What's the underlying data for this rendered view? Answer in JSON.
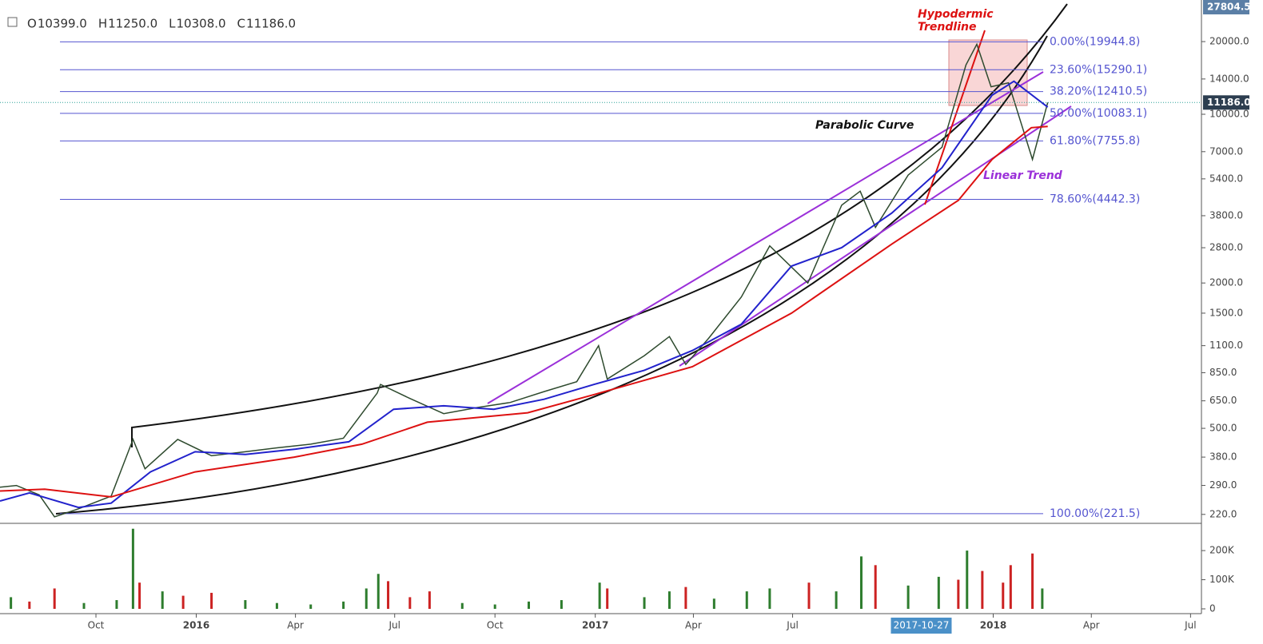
{
  "ohlc": [
    {
      "key": "O",
      "value": 10399,
      "label": "10399.0"
    },
    {
      "key": "H",
      "value": 11250,
      "label": "11250.0"
    },
    {
      "key": "L",
      "value": 10308,
      "label": "10308.0"
    },
    {
      "key": "C",
      "value": 11186,
      "label": "11186.0"
    }
  ],
  "chart_data": [
    {
      "type": "line",
      "log_scale": true,
      "xlim": [
        "2015-07-05",
        "2018-07-11"
      ],
      "ylim": [
        202,
        29740
      ],
      "yticks": [
        {
          "value": 20000,
          "label": "20000.0"
        },
        {
          "value": 14000,
          "label": "14000.0"
        },
        {
          "value": 10000,
          "label": "10000.0"
        },
        {
          "value": 7000,
          "label": "7000.0"
        },
        {
          "value": 5400,
          "label": "5400.0"
        },
        {
          "value": 3800,
          "label": "3800.0"
        },
        {
          "value": 2800,
          "label": "2800.0"
        },
        {
          "value": 2000,
          "label": "2000.0"
        },
        {
          "value": 1500,
          "label": "1500.0"
        },
        {
          "value": 1100,
          "label": "1100.0"
        },
        {
          "value": 850,
          "label": "850.0"
        },
        {
          "value": 650,
          "label": "650.0"
        },
        {
          "value": 500,
          "label": "500.0"
        },
        {
          "value": 380,
          "label": "380.0"
        },
        {
          "value": 290,
          "label": "290.0"
        },
        {
          "value": 220,
          "label": "220.0"
        }
      ],
      "xticks": [
        {
          "value": "2015-10-01",
          "label": "Oct"
        },
        {
          "value": "2016-01-01",
          "label": "2016"
        },
        {
          "value": "2016-04-01",
          "label": "Apr"
        },
        {
          "value": "2016-07-01",
          "label": "Jul"
        },
        {
          "value": "2016-10-01",
          "label": "Oct"
        },
        {
          "value": "2017-01-01",
          "label": "2017"
        },
        {
          "value": "2017-04-01",
          "label": "Apr"
        },
        {
          "value": "2017-07-01",
          "label": "Jul"
        },
        {
          "value": "2018-01-01",
          "label": "2018"
        },
        {
          "value": "2018-04-01",
          "label": "Apr"
        },
        {
          "value": "2018-07-01",
          "label": "Jul"
        }
      ],
      "crosshair_date": "2017-10-27",
      "axis_high": {
        "value": 27804.5,
        "label": "27804.5"
      },
      "last_price": {
        "value": 11186,
        "label": "11186.0"
      },
      "fib_levels": [
        {
          "value": 19944.8,
          "label": "0.00%(19944.8)"
        },
        {
          "value": 15290.1,
          "label": "23.60%(15290.1)"
        },
        {
          "value": 12410.5,
          "label": "38.20%(12410.5)"
        },
        {
          "value": 10083.1,
          "label": "50.00%(10083.1)"
        },
        {
          "value": 7755.8,
          "label": "61.80%(7755.8)"
        },
        {
          "value": 4442.3,
          "label": "78.60%(4442.3)"
        },
        {
          "value": 221.5,
          "label": "100.00%(221.5)"
        }
      ],
      "fib_color": "#5555d0",
      "annotations": {
        "hypodermic": "Hypodermic",
        "trendline": "Trendline",
        "parabolic": "Parabolic Curve",
        "linear": "Linear Trend"
      },
      "series": [
        {
          "color": "#2e4a2e",
          "x": [
            "2015-07-05",
            "2015-07-20",
            "2015-08-10",
            "2015-08-24",
            "2015-09-15",
            "2015-10-15",
            "2015-11-04",
            "2015-11-15",
            "2015-12-15",
            "2016-01-15",
            "2016-02-15",
            "2016-03-15",
            "2016-04-15",
            "2016-05-15",
            "2016-06-15",
            "2016-06-18",
            "2016-07-15",
            "2016-08-15",
            "2016-09-15",
            "2016-10-15",
            "2016-11-15",
            "2016-12-15",
            "2017-01-04",
            "2017-01-12",
            "2017-02-15",
            "2017-03-10",
            "2017-03-25",
            "2017-04-15",
            "2017-05-15",
            "2017-06-10",
            "2017-07-15",
            "2017-08-15",
            "2017-09-01",
            "2017-09-15",
            "2017-10-15",
            "2017-11-15",
            "2017-12-07",
            "2017-12-17",
            "2017-12-30",
            "2018-01-15",
            "2018-02-06",
            "2018-02-20"
          ],
          "values": [
            285,
            290,
            265,
            215,
            232,
            262,
            450,
            340,
            450,
            385,
            400,
            415,
            430,
            455,
            700,
            760,
            665,
            575,
            610,
            640,
            710,
            780,
            1100,
            800,
            1000,
            1200,
            920,
            1180,
            1750,
            2850,
            2000,
            4200,
            4800,
            3400,
            5600,
            7300,
            16000,
            19500,
            13000,
            13500,
            6500,
            11186
          ]
        },
        {
          "color": "#2222cc",
          "x": [
            "2015-07-05",
            "2015-08-01",
            "2015-09-15",
            "2015-10-15",
            "2015-11-20",
            "2015-12-31",
            "2016-02-15",
            "2016-04-01",
            "2016-05-20",
            "2016-06-30",
            "2016-08-15",
            "2016-09-30",
            "2016-11-15",
            "2016-12-31",
            "2017-02-15",
            "2017-03-31",
            "2017-05-15",
            "2017-06-30",
            "2017-08-15",
            "2017-09-30",
            "2017-11-15",
            "2017-12-31",
            "2018-01-20",
            "2018-02-20"
          ],
          "values": [
            250,
            270,
            235,
            245,
            330,
            400,
            390,
            410,
            440,
            600,
            620,
            600,
            660,
            760,
            870,
            1050,
            1350,
            2350,
            2800,
            3900,
            6000,
            12000,
            13700,
            10700
          ]
        },
        {
          "color": "#dd1111",
          "x": [
            "2015-07-05",
            "2015-08-15",
            "2015-10-15",
            "2015-12-31",
            "2016-03-31",
            "2016-06-01",
            "2016-07-31",
            "2016-10-31",
            "2016-12-31",
            "2017-03-31",
            "2017-06-30",
            "2017-09-30",
            "2017-11-30",
            "2017-12-31",
            "2018-02-05",
            "2018-02-20"
          ],
          "values": [
            275,
            280,
            260,
            330,
            380,
            430,
            530,
            580,
            690,
            900,
            1500,
            2900,
            4400,
            6500,
            8800,
            8900
          ]
        }
      ]
    },
    {
      "type": "bar",
      "ylim": [
        0,
        288000
      ],
      "yticks": [
        0,
        {
          "value": 100000,
          "label": "100K"
        },
        {
          "value": 200000,
          "label": "200K"
        }
      ],
      "x": [
        "2015-07-15",
        "2015-08-01",
        "2015-08-24",
        "2015-09-20",
        "2015-10-20",
        "2015-11-04",
        "2015-11-10",
        "2015-12-01",
        "2015-12-20",
        "2016-01-15",
        "2016-02-15",
        "2016-03-15",
        "2016-04-15",
        "2016-05-15",
        "2016-06-05",
        "2016-06-16",
        "2016-06-25",
        "2016-07-15",
        "2016-08-02",
        "2016-09-01",
        "2016-10-01",
        "2016-11-01",
        "2016-12-01",
        "2017-01-05",
        "2017-01-12",
        "2017-02-15",
        "2017-03-10",
        "2017-03-25",
        "2017-04-20",
        "2017-05-20",
        "2017-06-10",
        "2017-07-16",
        "2017-08-10",
        "2017-09-02",
        "2017-09-15",
        "2017-10-15",
        "2017-11-12",
        "2017-11-30",
        "2017-12-08",
        "2017-12-22",
        "2018-01-10",
        "2018-01-17",
        "2018-02-06",
        "2018-02-15"
      ],
      "values": [
        40000,
        25000,
        70000,
        20000,
        30000,
        275000,
        90000,
        60000,
        45000,
        55000,
        30000,
        20000,
        15000,
        25000,
        70000,
        120000,
        95000,
        40000,
        60000,
        20000,
        15000,
        25000,
        30000,
        90000,
        70000,
        40000,
        60000,
        75000,
        35000,
        60000,
        70000,
        90000,
        60000,
        180000,
        150000,
        80000,
        110000,
        100000,
        200000,
        130000,
        90000,
        150000,
        190000,
        70000
      ],
      "colors": [
        "#2e7d2e",
        "#cc2222",
        "#cc2222",
        "#2e7d2e",
        "#2e7d2e",
        "#2e7d2e",
        "#cc2222",
        "#2e7d2e",
        "#cc2222",
        "#cc2222",
        "#2e7d2e",
        "#2e7d2e",
        "#2e7d2e",
        "#2e7d2e",
        "#2e7d2e",
        "#2e7d2e",
        "#cc2222",
        "#cc2222",
        "#cc2222",
        "#2e7d2e",
        "#2e7d2e",
        "#2e7d2e",
        "#2e7d2e",
        "#2e7d2e",
        "#cc2222",
        "#2e7d2e",
        "#2e7d2e",
        "#cc2222",
        "#2e7d2e",
        "#2e7d2e",
        "#2e7d2e",
        "#cc2222",
        "#2e7d2e",
        "#2e7d2e",
        "#cc2222",
        "#2e7d2e",
        "#2e7d2e",
        "#cc2222",
        "#2e7d2e",
        "#cc2222",
        "#cc2222",
        "#cc2222",
        "#cc2222",
        "#2e7d2e"
      ]
    }
  ]
}
